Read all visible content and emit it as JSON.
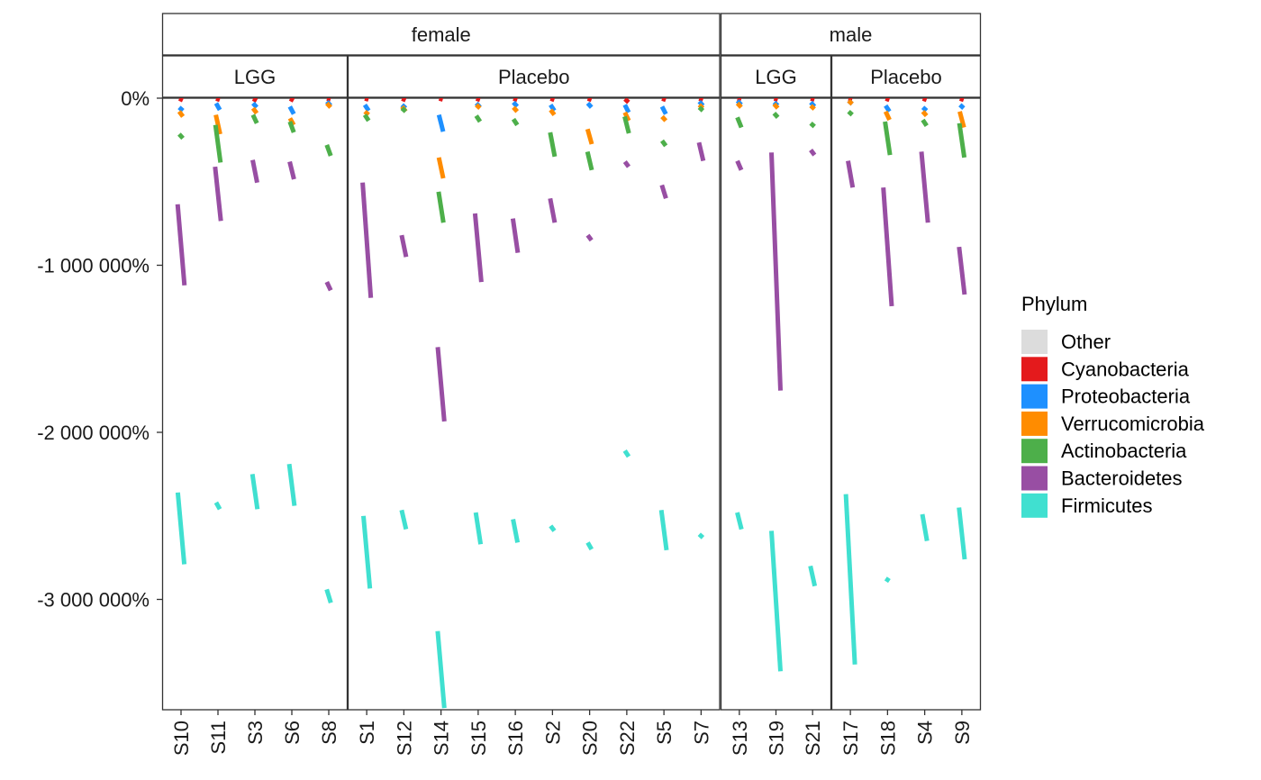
{
  "chart_data": {
    "type": "line",
    "title": "",
    "xlabel": "",
    "ylabel": "",
    "ylim": [
      -3650000,
      0
    ],
    "y_ticks": [
      0,
      -1000000,
      -2000000,
      -3000000
    ],
    "y_tick_labels": [
      "0%",
      "-1 000 000%",
      "-2 000 000%",
      "-3 000 000%"
    ],
    "grid": false,
    "legend_position": "right",
    "legend": {
      "title": "Phylum",
      "entries": [
        {
          "name": "Other",
          "color": "#DCDCDC"
        },
        {
          "name": "Cyanobacteria",
          "color": "#E41A1C"
        },
        {
          "name": "Proteobacteria",
          "color": "#1E90FF"
        },
        {
          "name": "Verrucomicrobia",
          "color": "#FF8C00"
        },
        {
          "name": "Actinobacteria",
          "color": "#4DAF4A"
        },
        {
          "name": "Bacteroidetes",
          "color": "#984EA3"
        },
        {
          "name": "Firmicutes",
          "color": "#40E0D0"
        }
      ]
    },
    "strips": {
      "top": [
        "female",
        "male"
      ],
      "bottom": [
        {
          "label": "LGG",
          "group": "female"
        },
        {
          "label": "Placebo",
          "group": "female"
        },
        {
          "label": "LGG",
          "group": "male"
        },
        {
          "label": "Placebo",
          "group": "male"
        }
      ]
    },
    "panels": [
      {
        "top": "female",
        "sub": "LGG",
        "samples": [
          "S10",
          "S11",
          "S3",
          "S6",
          "S8"
        ]
      },
      {
        "top": "female",
        "sub": "Placebo",
        "samples": [
          "S1",
          "S12",
          "S14",
          "S15",
          "S16",
          "S2",
          "S20",
          "S22",
          "S5",
          "S7"
        ]
      },
      {
        "top": "male",
        "sub": "LGG",
        "samples": [
          "S13",
          "S19",
          "S21"
        ]
      },
      {
        "top": "male",
        "sub": "Placebo",
        "samples": [
          "S17",
          "S18",
          "S4",
          "S9"
        ]
      }
    ],
    "series": [
      {
        "name": "Cyanobacteria",
        "segments": {
          "S10": [
            -2000,
            -12000
          ],
          "S11": [
            -2000,
            -10000
          ],
          "S3": [
            -3000,
            -15000
          ],
          "S6": [
            -2000,
            -14000
          ],
          "S8": [
            -2000,
            -8000
          ],
          "S1": [
            -2000,
            -8000
          ],
          "S12": [
            -2000,
            -12000
          ],
          "S14": [
            -2000,
            -8000
          ],
          "S15": [
            -2000,
            -10000
          ],
          "S16": [
            -2000,
            -10000
          ],
          "S2": [
            -2000,
            -10000
          ],
          "S20": [
            -2000,
            -10000
          ],
          "S22": [
            -5000,
            -25000
          ],
          "S5": [
            -2000,
            -10000
          ],
          "S7": [
            -2000,
            -10000
          ],
          "S13": [
            -2000,
            -8000
          ],
          "S19": [
            -2000,
            -8000
          ],
          "S21": [
            -2000,
            -8000
          ],
          "S17": [
            -2000,
            -8000
          ],
          "S18": [
            -2000,
            -10000
          ],
          "S4": [
            -2000,
            -10000
          ],
          "S9": [
            -2000,
            -10000
          ]
        }
      },
      {
        "name": "Proteobacteria",
        "segments": {
          "S10": [
            -55000,
            -75000
          ],
          "S11": [
            -30000,
            -70000
          ],
          "S3": [
            -30000,
            -55000
          ],
          "S6": [
            -50000,
            -95000
          ],
          "S8": [
            -20000,
            -45000
          ],
          "S1": [
            -40000,
            -75000
          ],
          "S12": [
            -40000,
            -60000
          ],
          "S14": [
            -100000,
            -200000
          ],
          "S15": [
            -30000,
            -55000
          ],
          "S16": [
            -25000,
            -50000
          ],
          "S2": [
            -40000,
            -75000
          ],
          "S20": [
            -30000,
            -55000
          ],
          "S22": [
            -40000,
            -85000
          ],
          "S5": [
            -50000,
            -95000
          ],
          "S7": [
            -20000,
            -45000
          ],
          "S13": [
            -15000,
            -40000
          ],
          "S19": [
            -25000,
            -45000
          ],
          "S21": [
            -25000,
            -50000
          ],
          "S17": [
            -15000,
            -35000
          ],
          "S18": [
            -45000,
            -80000
          ],
          "S4": [
            -55000,
            -75000
          ],
          "S9": [
            -40000,
            -60000
          ]
        }
      },
      {
        "name": "Verrucomicrobia",
        "segments": {
          "S10": [
            -80000,
            -110000
          ],
          "S11": [
            -100000,
            -215000
          ],
          "S3": [
            -60000,
            -90000
          ],
          "S6": [
            -120000,
            -160000
          ],
          "S8": [
            -30000,
            -55000
          ],
          "S1": [
            -80000,
            -100000
          ],
          "S12": [
            -50000,
            -80000
          ],
          "S14": [
            -355000,
            -480000
          ],
          "S15": [
            -40000,
            -60000
          ],
          "S16": [
            -55000,
            -80000
          ],
          "S2": [
            -70000,
            -100000
          ],
          "S20": [
            -185000,
            -275000
          ],
          "S22": [
            -85000,
            -135000
          ],
          "S5": [
            -110000,
            -135000
          ],
          "S7": [
            -40000,
            -60000
          ],
          "S13": [
            -30000,
            -55000
          ],
          "S19": [
            -35000,
            -60000
          ],
          "S21": [
            -45000,
            -65000
          ],
          "S17": [
            -15000,
            -35000
          ],
          "S18": [
            -80000,
            -130000
          ],
          "S4": [
            -80000,
            -105000
          ],
          "S9": [
            -80000,
            -175000
          ]
        }
      },
      {
        "name": "Actinobacteria",
        "segments": {
          "S10": [
            -215000,
            -240000
          ],
          "S11": [
            -160000,
            -385000
          ],
          "S3": [
            -100000,
            -150000
          ],
          "S6": [
            -140000,
            -205000
          ],
          "S8": [
            -280000,
            -345000
          ],
          "S1": [
            -100000,
            -135000
          ],
          "S12": [
            -60000,
            -80000
          ],
          "S14": [
            -560000,
            -745000
          ],
          "S15": [
            -105000,
            -140000
          ],
          "S16": [
            -125000,
            -160000
          ],
          "S2": [
            -205000,
            -350000
          ],
          "S20": [
            -320000,
            -430000
          ],
          "S22": [
            -110000,
            -210000
          ],
          "S5": [
            -255000,
            -285000
          ],
          "S7": [
            -55000,
            -75000
          ],
          "S13": [
            -115000,
            -175000
          ],
          "S19": [
            -90000,
            -115000
          ],
          "S21": [
            -150000,
            -170000
          ],
          "S17": [
            -80000,
            -100000
          ],
          "S18": [
            -140000,
            -340000
          ],
          "S4": [
            -130000,
            -165000
          ],
          "S9": [
            -150000,
            -355000
          ]
        }
      },
      {
        "name": "Bacteroidetes",
        "segments": {
          "S10": [
            -635000,
            -1120000
          ],
          "S11": [
            -410000,
            -735000
          ],
          "S3": [
            -370000,
            -505000
          ],
          "S6": [
            -380000,
            -485000
          ],
          "S8": [
            -1100000,
            -1150000
          ],
          "S1": [
            -505000,
            -1195000
          ],
          "S12": [
            -820000,
            -950000
          ],
          "S14": [
            -1490000,
            -1935000
          ],
          "S15": [
            -690000,
            -1100000
          ],
          "S16": [
            -720000,
            -925000
          ],
          "S2": [
            -600000,
            -745000
          ],
          "S20": [
            -820000,
            -850000
          ],
          "S22": [
            -380000,
            -410000
          ],
          "S5": [
            -520000,
            -600000
          ],
          "S7": [
            -265000,
            -375000
          ],
          "S13": [
            -375000,
            -430000
          ],
          "S19": [
            -325000,
            -1750000
          ],
          "S21": [
            -310000,
            -340000
          ],
          "S17": [
            -375000,
            -535000
          ],
          "S18": [
            -535000,
            -1245000
          ],
          "S4": [
            -320000,
            -745000
          ],
          "S9": [
            -890000,
            -1175000
          ]
        }
      },
      {
        "name": "Firmicutes",
        "segments": {
          "S10": [
            -2360000,
            -2790000
          ],
          "S11": [
            -2420000,
            -2460000
          ],
          "S3": [
            -2250000,
            -2460000
          ],
          "S6": [
            -2190000,
            -2440000
          ],
          "S8": [
            -2940000,
            -3020000
          ],
          "S1": [
            -2500000,
            -2935000
          ],
          "S12": [
            -2465000,
            -2580000
          ],
          "S14": [
            -3190000,
            -3650000
          ],
          "S15": [
            -2480000,
            -2670000
          ],
          "S16": [
            -2520000,
            -2660000
          ],
          "S2": [
            -2560000,
            -2590000
          ],
          "S20": [
            -2660000,
            -2700000
          ],
          "S22": [
            -2110000,
            -2145000
          ],
          "S5": [
            -2465000,
            -2705000
          ],
          "S7": [
            -2610000,
            -2630000
          ],
          "S13": [
            -2480000,
            -2580000
          ],
          "S19": [
            -2590000,
            -3430000
          ],
          "S21": [
            -2800000,
            -2920000
          ],
          "S17": [
            -2370000,
            -3390000
          ],
          "S18": [
            -2875000,
            -2890000
          ],
          "S4": [
            -2490000,
            -2650000
          ],
          "S9": [
            -2450000,
            -2760000
          ]
        }
      }
    ]
  }
}
